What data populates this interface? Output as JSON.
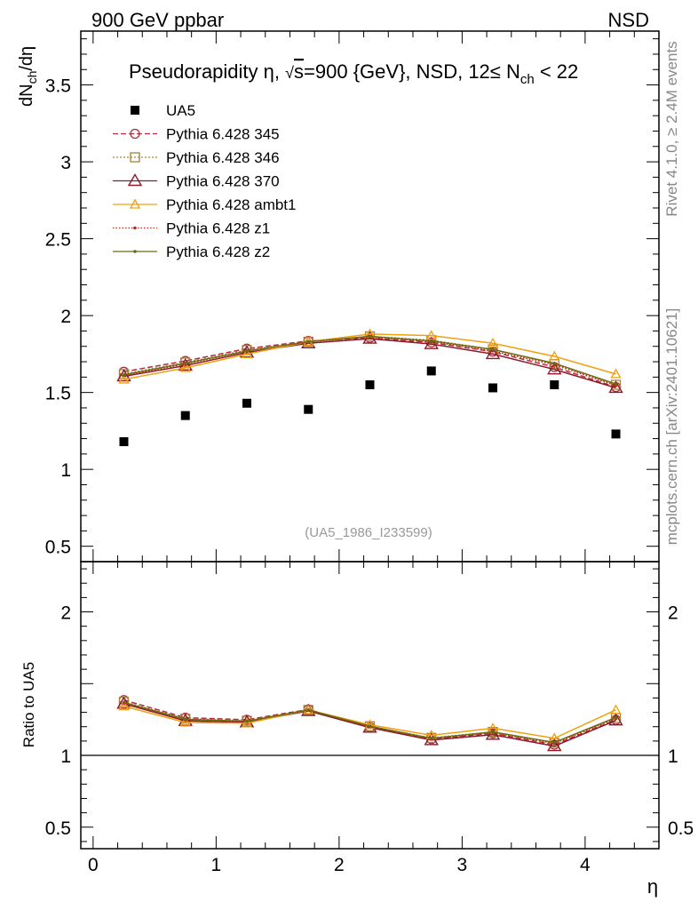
{
  "header": {
    "left": "900 GeV ppbar",
    "right": "NSD"
  },
  "side": {
    "rivet": "Rivet 4.1.0, ≥ 2.4M events",
    "mcplots": "mcplots.cern.ch [arXiv:2401.10621]"
  },
  "chart_data": {
    "type": "line",
    "title_parts": {
      "lead": "Pseudorapidity ",
      "eta": "η",
      "sep": ", ",
      "sqrt": "√",
      "s": "s",
      "energy": "=900 {GeV}, NSD, 12≤ N",
      "sub": "ch",
      "tail": " < 22"
    },
    "ylabel": {
      "main": "dN",
      "sub": "ch",
      "rest": "/dη"
    },
    "ratio_ylabel": "Ratio to UA5",
    "xlabel": "η",
    "watermark": "(UA5_1986_I233599)",
    "xlim": [
      -0.1,
      4.6
    ],
    "ylim": [
      0.4,
      3.85
    ],
    "ratio_ylim": [
      0.35,
      2.35
    ],
    "xticks": [
      "0",
      "1",
      "2",
      "3",
      "4"
    ],
    "yticks": [
      "0.5",
      "1",
      "1.5",
      "2",
      "2.5",
      "3",
      "3.5"
    ],
    "ratio_yticks": [
      "0.5",
      "1",
      "2"
    ],
    "x": [
      0.25,
      0.75,
      1.25,
      1.75,
      2.25,
      2.75,
      3.25,
      3.75,
      4.25
    ],
    "data": {
      "name": "UA5",
      "values": [
        1.18,
        1.35,
        1.43,
        1.39,
        1.55,
        1.64,
        1.53,
        1.55,
        1.23
      ]
    },
    "series": [
      {
        "name": "Pythia 6.428 345",
        "color": "#b22a3c",
        "dash": "6,3",
        "marker": "circle",
        "values": [
          1.635,
          1.705,
          1.785,
          1.835,
          1.855,
          1.825,
          1.765,
          1.665,
          1.535
        ]
      },
      {
        "name": "Pythia 6.428 346",
        "color": "#a6813b",
        "dash": "2,2",
        "marker": "square",
        "values": [
          1.62,
          1.695,
          1.775,
          1.83,
          1.865,
          1.84,
          1.78,
          1.685,
          1.55
        ]
      },
      {
        "name": "Pythia 6.428 370",
        "color": "#8b1a2b",
        "dash": "",
        "marker": "triangle",
        "values": [
          1.605,
          1.675,
          1.76,
          1.82,
          1.85,
          1.815,
          1.75,
          1.65,
          1.53
        ]
      },
      {
        "name": "Pythia 6.428 ambt1",
        "color": "#f0a010",
        "dash": "",
        "marker": "triangle-small",
        "values": [
          1.585,
          1.66,
          1.75,
          1.83,
          1.88,
          1.87,
          1.82,
          1.735,
          1.62
        ]
      },
      {
        "name": "Pythia 6.428 z1",
        "color": "#c0281e",
        "dash": "1.5,2",
        "marker": "dot",
        "values": [
          1.61,
          1.685,
          1.77,
          1.83,
          1.86,
          1.83,
          1.77,
          1.68,
          1.545
        ]
      },
      {
        "name": "Pythia 6.428 z2",
        "color": "#6b6b10",
        "dash": "",
        "marker": "dot",
        "values": [
          1.615,
          1.69,
          1.77,
          1.83,
          1.865,
          1.835,
          1.78,
          1.69,
          1.555
        ]
      }
    ]
  }
}
